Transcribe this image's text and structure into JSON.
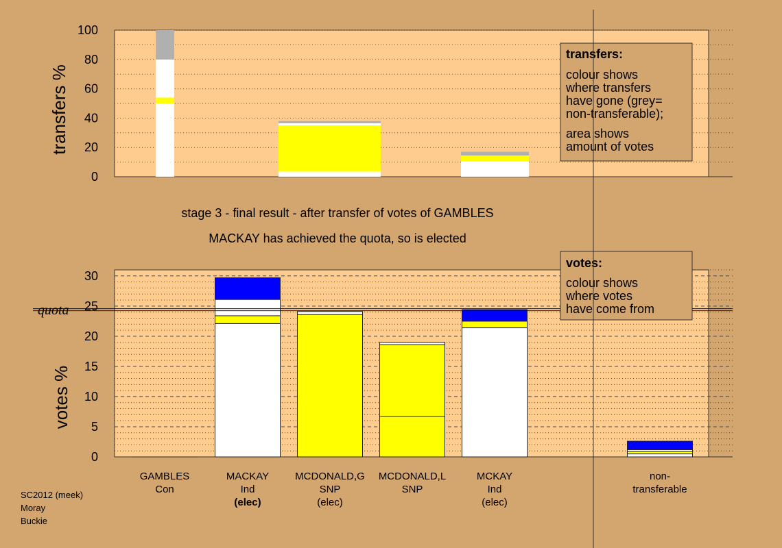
{
  "chart_data": [
    {
      "type": "bar",
      "stacked": true,
      "ylabel": "transfers %",
      "ylim": [
        0,
        100
      ],
      "yticks": [
        0,
        20,
        40,
        60,
        80,
        100
      ],
      "grid": "dotted",
      "categories": [
        "GAMBLES",
        "MACKAY",
        "MCDONALD,G",
        "MCDONALD,L",
        "MCKAY",
        "non-transferable"
      ],
      "note": "GAMBLES bar is the source column; colored segments of other bars show where transfers went",
      "source_bar": {
        "category": "GAMBLES",
        "segments": [
          {
            "color": "#ffffff",
            "from": 0,
            "to": 50
          },
          {
            "color": "#ffff00",
            "from": 50,
            "to": 54
          },
          {
            "color": "#ffffff",
            "from": 54,
            "to": 80
          },
          {
            "color": "#b0b0b0",
            "from": 80,
            "to": 100
          }
        ]
      },
      "bars": [
        {
          "category": "MCDONALD,G",
          "segments": [
            {
              "color": "#ffffff",
              "from": 0,
              "to": 3.5
            },
            {
              "color": "#ffff00",
              "from": 3.5,
              "to": 35
            },
            {
              "color": "#ffffff",
              "from": 35,
              "to": 36.5
            },
            {
              "color": "#b0b0b0",
              "from": 36.5,
              "to": 38
            }
          ]
        },
        {
          "category": "MCKAY",
          "segments": [
            {
              "color": "#ffffff",
              "from": 0,
              "to": 10.5
            },
            {
              "color": "#ffff00",
              "from": 10.5,
              "to": 14.5
            },
            {
              "color": "#b0b0b0",
              "from": 14.5,
              "to": 17
            }
          ]
        }
      ],
      "legend": {
        "title": "transfers:",
        "lines": [
          "colour shows",
          "where transfers",
          "have gone (grey=",
          "non-transferable);",
          "area shows",
          "amount of votes"
        ],
        "placement": "top-right"
      }
    },
    {
      "type": "bar",
      "stacked": true,
      "ylabel": "votes %",
      "ylim": [
        0,
        31
      ],
      "yticks": [
        0,
        5,
        10,
        15,
        20,
        25,
        30
      ],
      "grid": "dotted",
      "quota": 24.4,
      "quota_label": "quota",
      "categories": [
        "GAMBLES",
        "MACKAY",
        "MCDONALD,G",
        "MCDONALD,L",
        "MCKAY",
        "non-transferable"
      ],
      "bars": [
        {
          "category": "GAMBLES",
          "segments": []
        },
        {
          "category": "MACKAY",
          "segments": [
            {
              "color": "#ffffff",
              "from": 0,
              "to": 22.1
            },
            {
              "color": "#ffff00",
              "from": 22.1,
              "to": 23.4
            },
            {
              "color": "#ffffff",
              "from": 23.4,
              "to": 26.1
            },
            {
              "color": "#0000ff",
              "from": 26.1,
              "to": 29.7
            }
          ]
        },
        {
          "category": "MCDONALD,G",
          "segments": [
            {
              "color": "#ffff00",
              "from": 0,
              "to": 23.6
            },
            {
              "color": "#ffffff",
              "from": 23.6,
              "to": 24.1
            }
          ]
        },
        {
          "category": "MCDONALD,L",
          "segments": [
            {
              "color": "#ffff00",
              "from": 0,
              "to": 6.7
            },
            {
              "color": "#ffff00",
              "from": 6.7,
              "to": 18.6
            },
            {
              "color": "#ffffff",
              "from": 18.6,
              "to": 19.0
            }
          ]
        },
        {
          "category": "MCKAY",
          "segments": [
            {
              "color": "#ffffff",
              "from": 0,
              "to": 21.4
            },
            {
              "color": "#ffff00",
              "from": 21.4,
              "to": 22.5
            },
            {
              "color": "#0000ff",
              "from": 22.5,
              "to": 24.4
            }
          ]
        },
        {
          "category": "non-transferable",
          "segments": [
            {
              "color": "#ffffff",
              "from": 0,
              "to": 0.5
            },
            {
              "color": "#ffff00",
              "from": 0.5,
              "to": 0.9
            },
            {
              "color": "#ffffff",
              "from": 0.9,
              "to": 1.2
            },
            {
              "color": "#0000ff",
              "from": 1.2,
              "to": 2.6
            }
          ]
        }
      ],
      "legend": {
        "title": "votes:",
        "lines": [
          "colour shows",
          "where votes",
          "have come from"
        ],
        "placement": "top-right"
      }
    }
  ],
  "captions": {
    "stage": "stage 3 - final result - after transfer of votes of GAMBLES",
    "result": "MACKAY has achieved the quota, so is elected"
  },
  "category_labels": [
    {
      "lines": [
        "GAMBLES",
        "Con"
      ],
      "bold": []
    },
    {
      "lines": [
        "MACKAY",
        "Ind",
        "(elec)"
      ],
      "bold": [
        2
      ]
    },
    {
      "lines": [
        "MCDONALD,G",
        "SNP",
        "(elec)"
      ],
      "bold": []
    },
    {
      "lines": [
        "MCDONALD,L",
        "SNP"
      ],
      "bold": []
    },
    {
      "lines": [
        "MCKAY",
        "Ind",
        "(elec)"
      ],
      "bold": []
    },
    {
      "lines": [
        "non-",
        "transferable"
      ],
      "bold": []
    }
  ],
  "footer": [
    "SC2012 (meek)",
    "Moray",
    "Buckie"
  ],
  "colors": {
    "background": "#d3a56f",
    "plot_area": "#ffcc8f",
    "legend_box": "#d3a56f",
    "white": "#ffffff",
    "yellow": "#ffff00",
    "grey": "#b0b0b0",
    "blue": "#0000ff"
  }
}
